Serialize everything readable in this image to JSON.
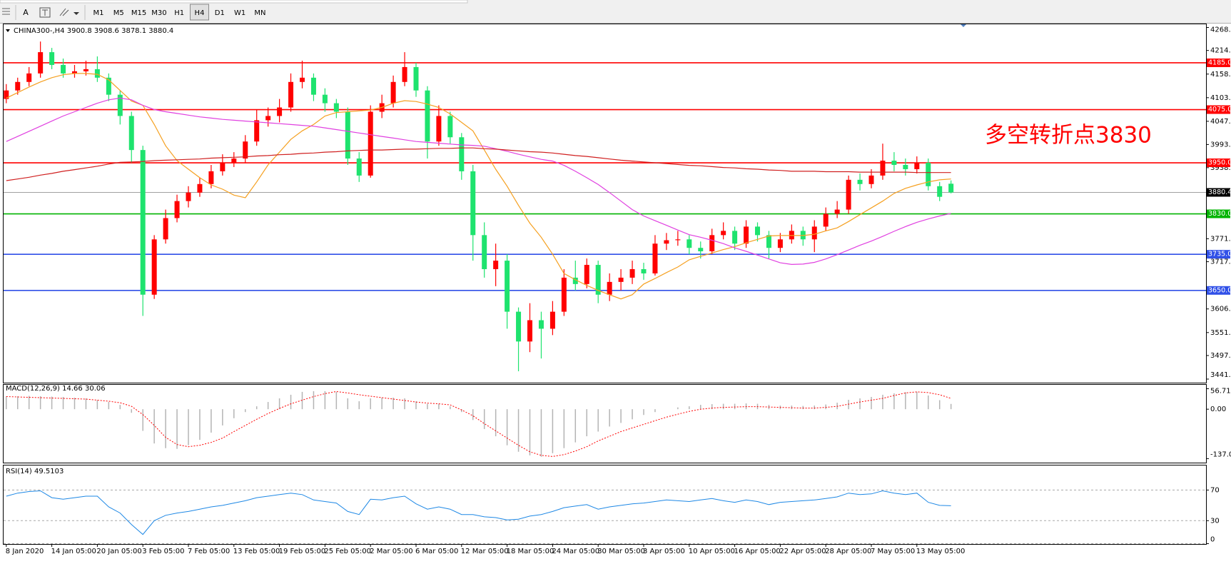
{
  "toolbar": {
    "tools": [
      "A"
    ],
    "timeframes": [
      "M1",
      "M5",
      "M15",
      "M30",
      "H1",
      "H4",
      "D1",
      "W1",
      "MN"
    ],
    "active": "H4"
  },
  "chart_data": [
    {
      "type": "candlestick",
      "symbol": "CHINA300-,H4",
      "annotation": "多空转折点3830",
      "up_color": "#ff0000",
      "down_color": "#1ee36e",
      "grid": false,
      "ylim": [
        3441.6,
        4268
      ],
      "yticks": [
        {
          "value": 4268,
          "label": "4268.0"
        },
        {
          "value": 4214,
          "label": "4214.0"
        },
        4158.5,
        {
          "value": 4103,
          "label": "4103.0"
        },
        4047.5,
        {
          "value": 3993,
          "label": "3993.0"
        },
        3938.5,
        3771.5,
        3717.5,
        3606.5,
        {
          "value": 3551,
          "label": "3551.0"
        },
        {
          "value": 3497,
          "label": "3497.0"
        },
        3441.6
      ],
      "categories": [
        "8 Jan 2020",
        null,
        null,
        null,
        "14 Jan 05:00",
        null,
        null,
        null,
        "20 Jan 05:00",
        null,
        null,
        null,
        "3 Feb 05:00",
        null,
        null,
        null,
        "7 Feb 05:00",
        null,
        null,
        null,
        "13 Feb 05:00",
        null,
        null,
        null,
        "19 Feb 05:00",
        null,
        null,
        null,
        "25 Feb 05:00",
        null,
        null,
        null,
        "2 Mar 05:00",
        null,
        null,
        null,
        "6 Mar 05:00",
        null,
        null,
        null,
        "12 Mar 05:00",
        null,
        null,
        null,
        "18 Mar 05:00",
        null,
        null,
        null,
        "24 Mar 05:00",
        null,
        null,
        null,
        "30 Mar 05:00",
        null,
        null,
        null,
        "3 Apr 05:00",
        null,
        null,
        null,
        "10 Apr 05:00",
        null,
        null,
        null,
        "16 Apr 05:00",
        null,
        null,
        null,
        "22 Apr 05:00",
        null,
        null,
        null,
        "28 Apr 05:00",
        null,
        null,
        null,
        "7 May 05:00",
        null,
        null,
        null,
        "13 May 05:00",
        null,
        null,
        null
      ],
      "open": [
        4100,
        4120,
        4140,
        4160,
        4210,
        4180,
        4160,
        4165,
        4170,
        4150,
        4110,
        4060,
        3980,
        3640,
        3770,
        3820,
        3860,
        3880,
        3900,
        3930,
        3950,
        3960,
        4000,
        4050,
        4060,
        4080,
        4140,
        4150,
        4110,
        4090,
        4070,
        3960,
        3920,
        4070,
        4090,
        4140,
        4175,
        4120,
        4000,
        4060,
        4010,
        3930,
        3780,
        3700,
        3720,
        3600,
        3530,
        3580,
        3560,
        3600,
        3680,
        3665,
        3710,
        3640,
        3670,
        3680,
        3700,
        3690,
        3760,
        3768,
        3770,
        3750,
        3742,
        3780,
        3790,
        3760,
        3800,
        3780,
        3750,
        3770,
        3790,
        3770,
        3800,
        3830,
        3840,
        3910,
        3900,
        3920,
        3955,
        3945,
        3935,
        3950,
        3895,
        3900.8
      ],
      "high": [
        4135,
        4150,
        4175,
        4235,
        4220,
        4195,
        4180,
        4190,
        4200,
        4160,
        4120,
        4070,
        3990,
        3780,
        3840,
        3875,
        3895,
        3915,
        3945,
        3970,
        3975,
        4015,
        4075,
        4080,
        4100,
        4160,
        4190,
        4160,
        4125,
        4100,
        4080,
        3975,
        4085,
        4110,
        4155,
        4210,
        4185,
        4130,
        4085,
        4070,
        4020,
        3945,
        3810,
        3760,
        3735,
        3610,
        3620,
        3600,
        3625,
        3700,
        3720,
        3725,
        3720,
        3690,
        3700,
        3720,
        3715,
        3780,
        3785,
        3790,
        3780,
        3765,
        3795,
        3810,
        3800,
        3815,
        3810,
        3790,
        3785,
        3805,
        3800,
        3815,
        3845,
        3860,
        3920,
        3925,
        3935,
        3995,
        3975,
        3960,
        3965,
        3960,
        3905,
        3908.6
      ],
      "low": [
        4090,
        4110,
        4130,
        4150,
        4170,
        4150,
        4150,
        4155,
        4140,
        4095,
        4040,
        3950,
        3590,
        3630,
        3760,
        3810,
        3845,
        3870,
        3890,
        3920,
        3940,
        3950,
        3990,
        4035,
        4045,
        4070,
        4125,
        4095,
        4070,
        4055,
        3945,
        3905,
        3915,
        4055,
        4080,
        4130,
        4105,
        3960,
        3990,
        3995,
        3910,
        3720,
        3680,
        3660,
        3560,
        3460,
        3505,
        3490,
        3545,
        3590,
        3650,
        3655,
        3620,
        3625,
        3650,
        3665,
        3675,
        3685,
        3745,
        3755,
        3735,
        3725,
        3735,
        3770,
        3745,
        3750,
        3765,
        3725,
        3740,
        3760,
        3755,
        3740,
        3790,
        3820,
        3830,
        3885,
        3890,
        3910,
        3930,
        3920,
        3925,
        3885,
        3860,
        3878.1
      ],
      "close": [
        4120,
        4140,
        4160,
        4210,
        4180,
        4160,
        4165,
        4170,
        4150,
        4110,
        4060,
        3980,
        3640,
        3770,
        3820,
        3860,
        3880,
        3900,
        3930,
        3950,
        3960,
        4000,
        4050,
        4060,
        4080,
        4140,
        4150,
        4110,
        4090,
        4070,
        3960,
        3920,
        4070,
        4090,
        4140,
        4175,
        4120,
        4000,
        4060,
        4010,
        3930,
        3780,
        3700,
        3720,
        3600,
        3530,
        3580,
        3560,
        3600,
        3680,
        3665,
        3710,
        3640,
        3670,
        3680,
        3700,
        3690,
        3760,
        3768,
        3770,
        3750,
        3742,
        3780,
        3790,
        3760,
        3800,
        3780,
        3750,
        3770,
        3790,
        3770,
        3800,
        3830,
        3840,
        3910,
        3900,
        3920,
        3955,
        3945,
        3935,
        3950,
        3895,
        3870,
        3880.4
      ],
      "series": [
        {
          "color": "#f5a020",
          "values": [
            4102,
            4115,
            4128,
            4140,
            4150,
            4157,
            4160,
            4160,
            4158,
            4145,
            4120,
            4095,
            4085,
            4040,
            3990,
            3955,
            3935,
            3915,
            3898,
            3888,
            3874,
            3868,
            3905,
            3945,
            3975,
            4005,
            4025,
            4040,
            4060,
            4068,
            4070,
            4072,
            4074,
            4080,
            4090,
            4096,
            4094,
            4088,
            4080,
            4065,
            4045,
            4025,
            3980,
            3935,
            3895,
            3850,
            3808,
            3775,
            3735,
            3690,
            3675,
            3662,
            3650,
            3640,
            3630,
            3640,
            3665,
            3678,
            3692,
            3705,
            3722,
            3730,
            3738,
            3746,
            3753,
            3762,
            3770,
            3778,
            3779,
            3779,
            3779,
            3782,
            3790,
            3797,
            3812,
            3828,
            3844,
            3860,
            3878,
            3890,
            3898,
            3905,
            3910,
            3912
          ]
        },
        {
          "color": "#e040e0",
          "values": [
            4000,
            4012,
            4024,
            4036,
            4048,
            4060,
            4070,
            4080,
            4090,
            4098,
            4102,
            4098,
            4085,
            4075,
            4070,
            4066,
            4062,
            4058,
            4055,
            4052,
            4050,
            4048,
            4046,
            4044,
            4042,
            4040,
            4038,
            4036,
            4032,
            4028,
            4024,
            4020,
            4016,
            4012,
            4008,
            4004,
            4000,
            3998,
            3996,
            3994,
            3992,
            3991,
            3989,
            3983,
            3977,
            3970,
            3964,
            3958,
            3954,
            3944,
            3930,
            3915,
            3899,
            3880,
            3860,
            3840,
            3825,
            3814,
            3803,
            3792,
            3781,
            3775,
            3768,
            3760,
            3750,
            3742,
            3733,
            3724,
            3715,
            3711,
            3712,
            3716,
            3724,
            3734,
            3745,
            3756,
            3766,
            3777,
            3789,
            3800,
            3810,
            3818,
            3825,
            3831
          ]
        },
        {
          "color": "#d02020",
          "values": [
            3908,
            3912,
            3916,
            3921,
            3925,
            3930,
            3934,
            3938,
            3942,
            3947,
            3951,
            3952,
            3953,
            3955,
            3956,
            3957,
            3958,
            3959,
            3961,
            3962,
            3963,
            3964,
            3966,
            3967,
            3969,
            3970,
            3972,
            3973,
            3975,
            3976,
            3978,
            3979,
            3980,
            3980,
            3981,
            3982,
            3982,
            3983,
            3984,
            3984,
            3985,
            3985,
            3983,
            3982,
            3980,
            3978,
            3976,
            3975,
            3973,
            3970,
            3967,
            3965,
            3962,
            3959,
            3956,
            3954,
            3952,
            3950,
            3948,
            3946,
            3944,
            3943,
            3941,
            3939,
            3938,
            3936,
            3935,
            3933,
            3932,
            3930,
            3930,
            3930,
            3929,
            3929,
            3929,
            3928,
            3928,
            3928,
            3928,
            3928,
            3927,
            3927,
            3927,
            3927
          ]
        }
      ],
      "levels": [
        {
          "value": 4185,
          "label": "4185.0",
          "color": "#ff0000"
        },
        {
          "value": 4075,
          "label": "4075.0",
          "color": "#ff0000"
        },
        {
          "value": 3950,
          "label": "3950.0",
          "color": "#ff0000"
        },
        {
          "value": 3830,
          "label": "3830.0",
          "color": "#00b400"
        },
        {
          "value": 3735,
          "label": "3735.0",
          "color": "#3050e8"
        },
        {
          "value": 3650,
          "label": "3650.0",
          "color": "#3050e8"
        }
      ]
    },
    {
      "type": "macd",
      "title": "MACD(12,26,9)",
      "color": "#b4b4b4",
      "signal_color": "#ff0000",
      "ylim": [
        -137.01,
        56.71
      ],
      "yticks": [
        56.71,
        {
          "value": 0,
          "label": "0.00"
        },
        -137.01
      ],
      "values": [
        35,
        36,
        37,
        36,
        35,
        34,
        32,
        30,
        25,
        20,
        12,
        -10,
        -60,
        -95,
        -108,
        -110,
        -100,
        -85,
        -65,
        -45,
        -25,
        -8,
        8,
        20,
        30,
        40,
        48,
        50,
        50,
        48,
        30,
        22,
        30,
        32,
        32,
        30,
        22,
        15,
        15,
        8,
        -8,
        -30,
        -55,
        -75,
        -100,
        -118,
        -128,
        -132,
        -122,
        -108,
        -92,
        -75,
        -62,
        -48,
        -38,
        -28,
        -16,
        -8,
        0,
        5,
        8,
        12,
        14,
        15,
        15,
        16,
        15,
        12,
        10,
        10,
        9,
        10,
        13,
        18,
        26,
        30,
        34,
        40,
        44,
        47,
        48,
        38,
        25,
        14.66
      ],
      "signal": [
        35,
        34,
        33,
        32,
        31,
        30,
        29,
        28,
        25,
        22,
        18,
        8,
        -15,
        -45,
        -78,
        -98,
        -104,
        -100,
        -92,
        -80,
        -62,
        -45,
        -28,
        -12,
        2,
        15,
        25,
        35,
        43,
        49,
        45,
        40,
        36,
        32,
        28,
        24,
        20,
        17,
        15,
        12,
        -2,
        -18,
        -40,
        -60,
        -80,
        -100,
        -118,
        -128,
        -131,
        -126,
        -116,
        -104,
        -88,
        -75,
        -62,
        -52,
        -42,
        -32,
        -22,
        -14,
        -6,
        0,
        3,
        5,
        6,
        7,
        7,
        6,
        5,
        4,
        3,
        3,
        5,
        8,
        14,
        20,
        25,
        30,
        38,
        45,
        48,
        46,
        40,
        30.06
      ]
    },
    {
      "type": "line",
      "title": "RSI(14)",
      "color": "#1e88e5",
      "ylim": [
        0,
        100
      ],
      "yticks": [
        70,
        30,
        0
      ],
      "values": [
        62,
        66,
        68,
        69,
        60,
        58,
        60,
        62,
        62,
        48,
        40,
        25,
        12,
        30,
        37,
        40,
        42,
        45,
        48,
        50,
        53,
        56,
        60,
        62,
        64,
        66,
        64,
        57,
        55,
        53,
        42,
        38,
        58,
        57,
        60,
        62,
        52,
        45,
        48,
        45,
        38,
        38,
        35,
        34,
        31,
        32,
        36,
        38,
        42,
        47,
        49,
        51,
        45,
        48,
        50,
        52,
        53,
        55,
        57,
        56,
        55,
        57,
        59,
        56,
        54,
        57,
        55,
        51,
        54,
        55,
        56,
        57,
        59,
        61,
        66,
        64,
        65,
        69,
        66,
        64,
        66,
        54,
        50,
        49.5103
      ]
    }
  ]
}
